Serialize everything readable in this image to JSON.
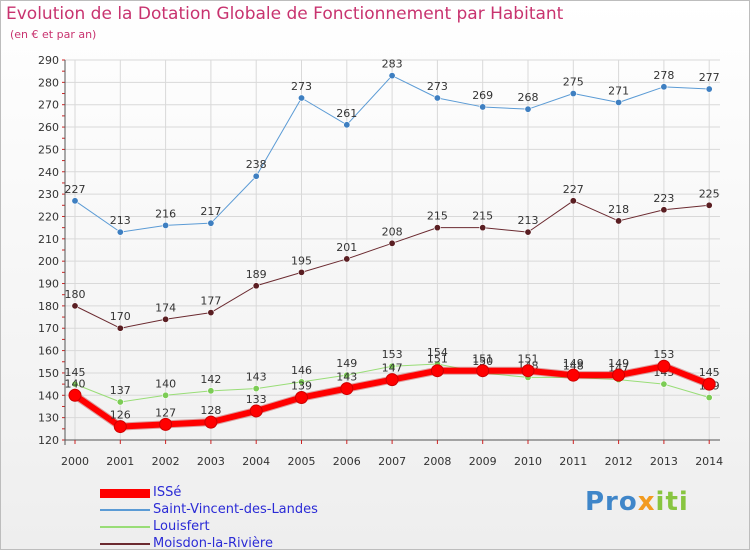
{
  "header": {
    "title": "Evolution de la Dotation Globale de Fonctionnement par Habitant",
    "subtitle": "(en € et par an)"
  },
  "logo": {
    "text_part1": "Pro",
    "text_part2": "x",
    "text_part3": "iti"
  },
  "colors": {
    "title": "#c8336f",
    "legend_text": "#2b2bd6",
    "axis_text": "#333333",
    "grid": "#d9d9d9",
    "axis_ticks": "#cc2222"
  },
  "chart_data": {
    "type": "line",
    "categories": [
      "2000",
      "2001",
      "2002",
      "2003",
      "2004",
      "2005",
      "2006",
      "2007",
      "2008",
      "2009",
      "2010",
      "2011",
      "2012",
      "2013",
      "2014"
    ],
    "ylim": [
      120,
      290
    ],
    "yticks": [
      120,
      130,
      140,
      150,
      160,
      170,
      180,
      190,
      200,
      210,
      220,
      230,
      240,
      250,
      260,
      270,
      280,
      290
    ],
    "grid": true,
    "legend_position": "bottom-left",
    "series": [
      {
        "name": "Saint-Vincent-des-Landes",
        "color": "#5b9bd5",
        "marker": "#3e7fc1",
        "line_width": 1,
        "values": [
          227,
          213,
          216,
          217,
          238,
          273,
          261,
          283,
          273,
          269,
          268,
          275,
          271,
          278,
          277
        ]
      },
      {
        "name": "Moisdon-la-Rivière",
        "color": "#6b2a30",
        "marker": "#5a1e22",
        "line_width": 1,
        "values": [
          180,
          170,
          174,
          177,
          189,
          195,
          201,
          208,
          215,
          215,
          213,
          227,
          218,
          223,
          225
        ]
      },
      {
        "name": "Louisfert",
        "color": "#99dd77",
        "marker": "#7ccc55",
        "line_width": 1,
        "values": [
          145,
          137,
          140,
          142,
          143,
          146,
          149,
          153,
          154,
          150,
          148,
          148,
          147,
          145,
          139
        ]
      },
      {
        "name": "ISSé",
        "color": "#ff0000",
        "marker": "#ff0000",
        "line_width": 6,
        "values": [
          140,
          126,
          127,
          128,
          133,
          139,
          143,
          147,
          151,
          151,
          151,
          149,
          149,
          153,
          145
        ]
      }
    ],
    "legend_order": [
      "ISSé",
      "Saint-Vincent-des-Landes",
      "Louisfert",
      "Moisdon-la-Rivière"
    ]
  }
}
